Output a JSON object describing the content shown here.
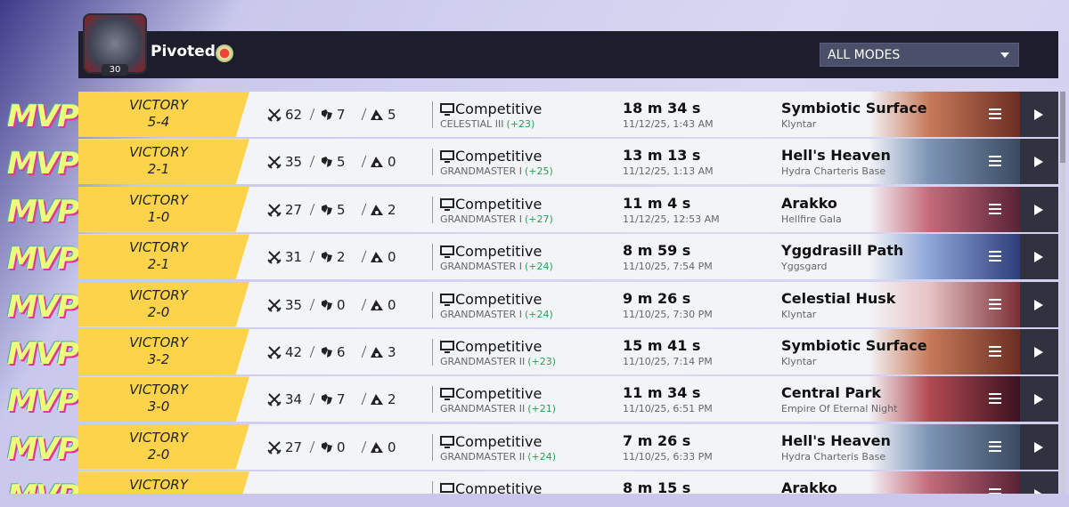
{
  "header": {
    "player_name": "Pivoted",
    "level": 30,
    "mode_filter": "ALL MODES"
  },
  "matches": [
    {
      "mvp": "MVP",
      "result": "VICTORY",
      "score": "5-4",
      "kills": 62,
      "deaths": 7,
      "assists": 5,
      "mode": "Competitive",
      "rank": "CELESTIAL III",
      "rank_change": "(+23)",
      "duration": "18 m 34 s",
      "date": "11/12/25, 1:43 AM",
      "map": "Symbiotic Surface",
      "region": "Klyntar"
    },
    {
      "mvp": "MVP",
      "result": "VICTORY",
      "score": "2-1",
      "kills": 35,
      "deaths": 5,
      "assists": 0,
      "mode": "Competitive",
      "rank": "GRANDMASTER I",
      "rank_change": "(+25)",
      "duration": "13 m 13 s",
      "date": "11/12/25, 1:13 AM",
      "map": "Hell's Heaven",
      "region": "Hydra Charteris Base"
    },
    {
      "mvp": "MVP",
      "result": "VICTORY",
      "score": "1-0",
      "kills": 27,
      "deaths": 5,
      "assists": 2,
      "mode": "Competitive",
      "rank": "GRANDMASTER I",
      "rank_change": "(+27)",
      "duration": "11 m 4 s",
      "date": "11/12/25, 12:53 AM",
      "map": "Arakko",
      "region": "Hellfire Gala"
    },
    {
      "mvp": "MVP",
      "result": "VICTORY",
      "score": "2-1",
      "kills": 31,
      "deaths": 2,
      "assists": 0,
      "mode": "Competitive",
      "rank": "GRANDMASTER I",
      "rank_change": "(+24)",
      "duration": "8 m 59 s",
      "date": "11/10/25, 7:54 PM",
      "map": "Yggdrasill Path",
      "region": "Yggsgard"
    },
    {
      "mvp": "MVP",
      "result": "VICTORY",
      "score": "2-0",
      "kills": 35,
      "deaths": 0,
      "assists": 0,
      "mode": "Competitive",
      "rank": "GRANDMASTER I",
      "rank_change": "(+24)",
      "duration": "9 m 26 s",
      "date": "11/10/25, 7:30 PM",
      "map": "Celestial Husk",
      "region": "Klyntar"
    },
    {
      "mvp": "MVP",
      "result": "VICTORY",
      "score": "3-2",
      "kills": 42,
      "deaths": 6,
      "assists": 3,
      "mode": "Competitive",
      "rank": "GRANDMASTER II",
      "rank_change": "(+23)",
      "duration": "15 m 41 s",
      "date": "11/10/25, 7:14 PM",
      "map": "Symbiotic Surface",
      "region": "Klyntar"
    },
    {
      "mvp": "MVP",
      "result": "VICTORY",
      "score": "3-0",
      "kills": 34,
      "deaths": 7,
      "assists": 2,
      "mode": "Competitive",
      "rank": "GRANDMASTER II",
      "rank_change": "(+21)",
      "duration": "11 m 34 s",
      "date": "11/10/25, 6:51 PM",
      "map": "Central Park",
      "region": "Empire Of Eternal Night"
    },
    {
      "mvp": "MVP",
      "result": "VICTORY",
      "score": "2-0",
      "kills": 27,
      "deaths": 0,
      "assists": 0,
      "mode": "Competitive",
      "rank": "GRANDMASTER II",
      "rank_change": "(+24)",
      "duration": "7 m 26 s",
      "date": "11/10/25, 6:33 PM",
      "map": "Hell's Heaven",
      "region": "Hydra Charteris Base"
    },
    {
      "mvp": "MVP",
      "result": "VICTORY",
      "mode": "Competitive",
      "duration": "8 m 15 s",
      "map": "Arakko"
    }
  ]
}
